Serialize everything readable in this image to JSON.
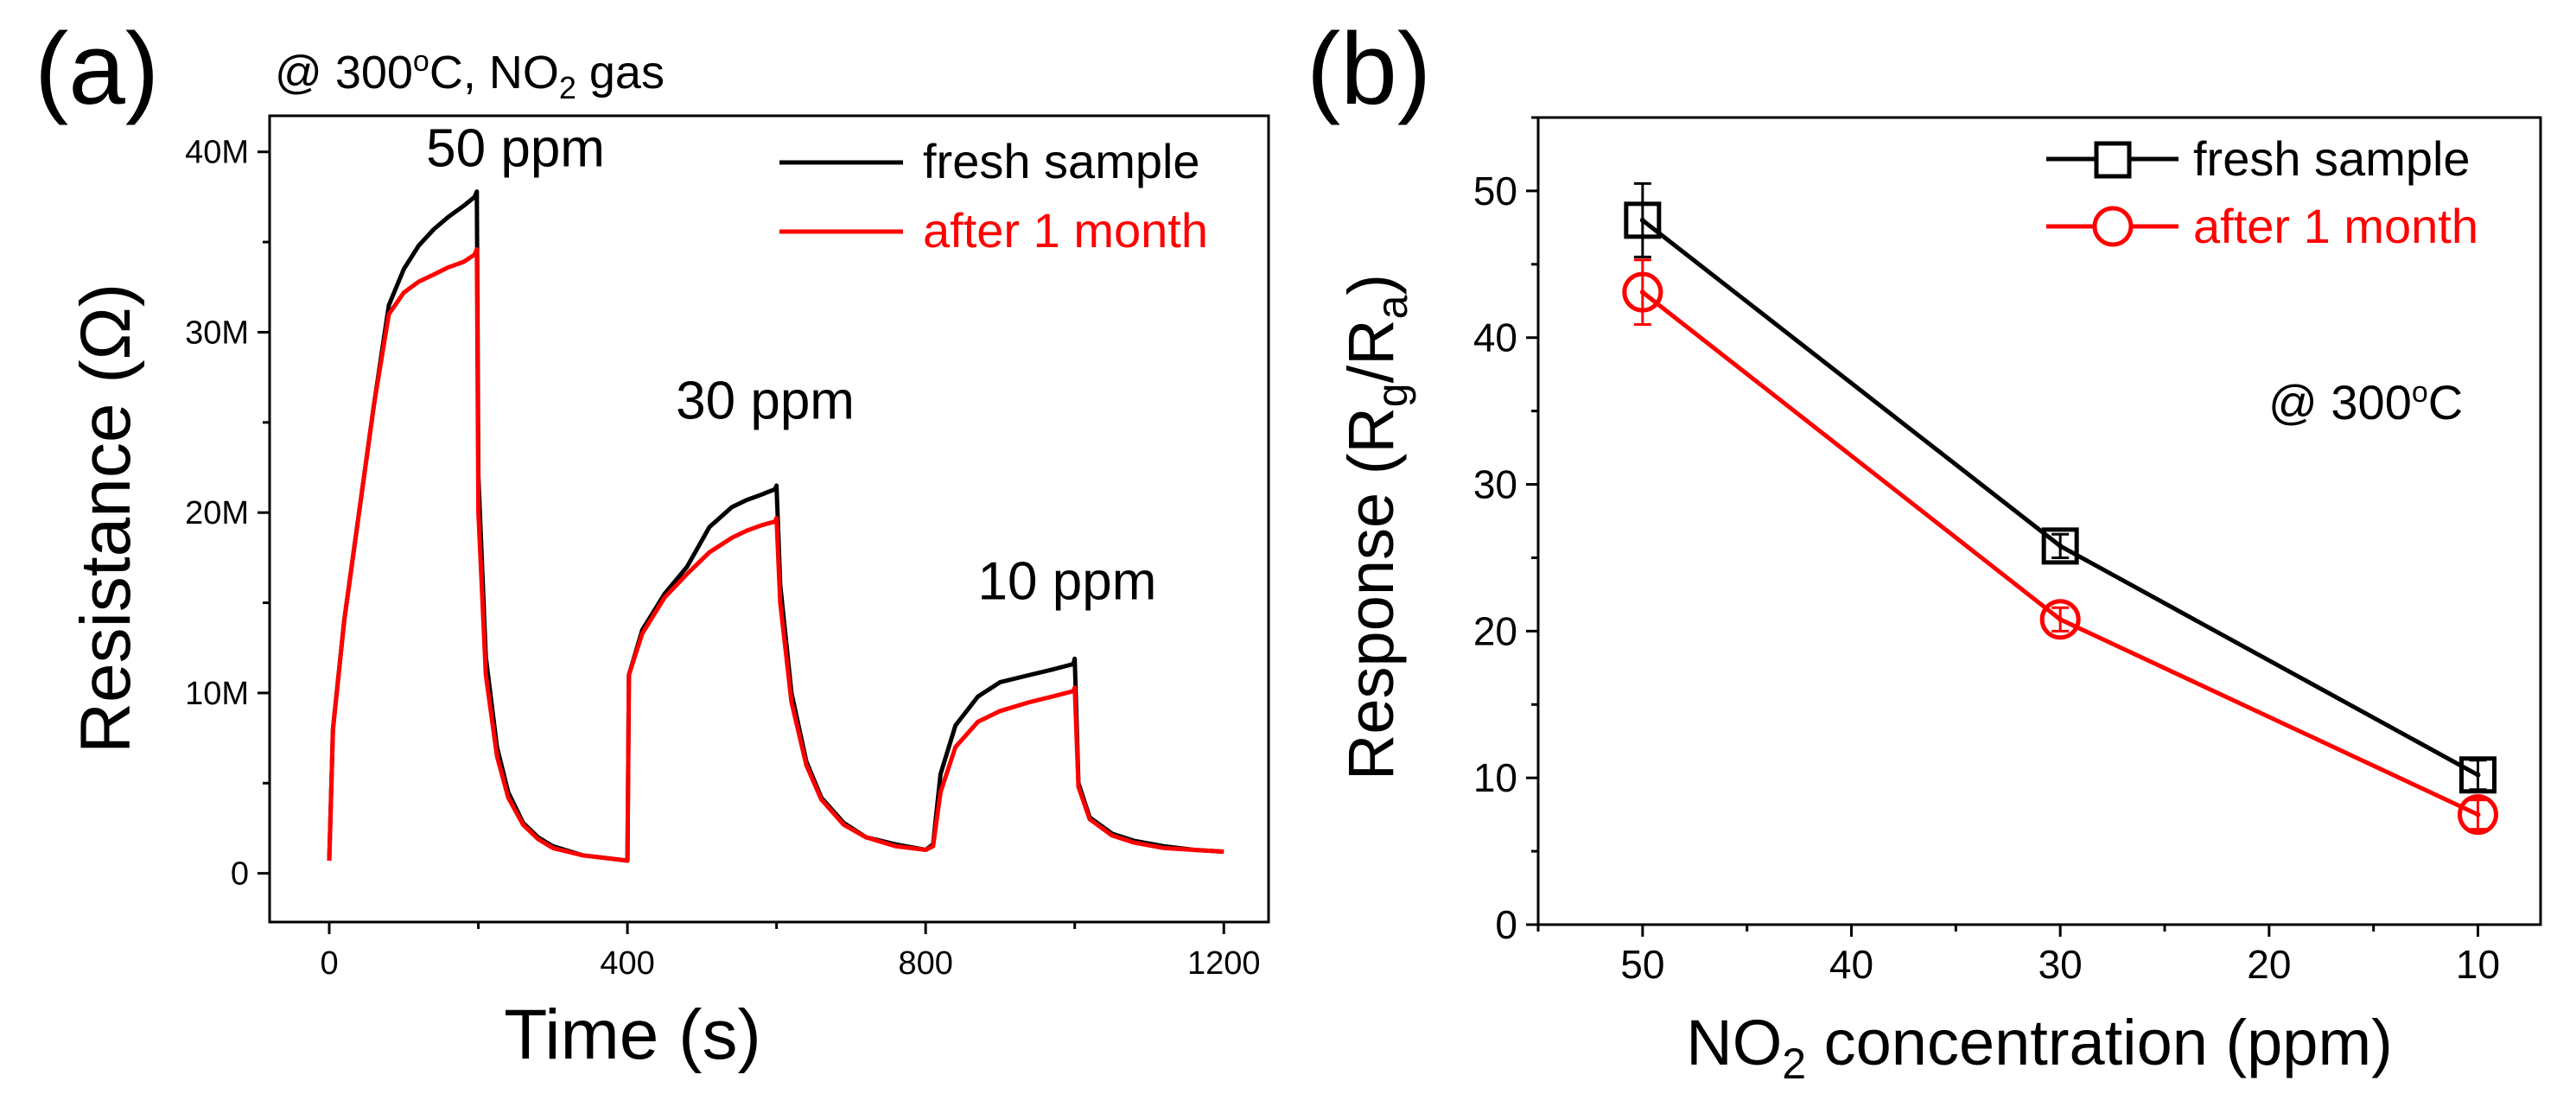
{
  "chart_data": [
    {
      "panel_label": "(a)",
      "type": "line",
      "condition_prefix": "@ 300",
      "condition_sup": "o",
      "condition_mid": "C, NO",
      "condition_sub": "2",
      "condition_suffix": " gas",
      "xlabel": "Time (s)",
      "ylabel": "Resistance (Ω)",
      "xlim": [
        -80,
        1260
      ],
      "ylim": [
        -2700000,
        42000000
      ],
      "xticks": [
        0,
        400,
        800,
        1200
      ],
      "xtick_labels": [
        "0",
        "400",
        "800",
        "1200"
      ],
      "yticks": [
        0,
        10000000,
        20000000,
        30000000,
        40000000
      ],
      "ytick_labels": [
        "0",
        "10M",
        "20M",
        "30M",
        "40M"
      ],
      "annotations": [
        {
          "text": "50 ppm",
          "x": 130,
          "y": 39200000
        },
        {
          "text": "30 ppm",
          "x": 465,
          "y": 25200000
        },
        {
          "text": "10 ppm",
          "x": 870,
          "y": 15200000
        }
      ],
      "legend": [
        {
          "name": "fresh sample",
          "color": "#000000"
        },
        {
          "name": "after 1 month",
          "color": "#ff0000"
        }
      ],
      "series": [
        {
          "name": "fresh sample",
          "color": "#000000",
          "points": [
            [
              0,
              700000
            ],
            [
              5,
              8000000
            ],
            [
              20,
              14000000
            ],
            [
              40,
              20000000
            ],
            [
              60,
              26000000
            ],
            [
              80,
              31500000
            ],
            [
              100,
              33500000
            ],
            [
              120,
              34800000
            ],
            [
              140,
              35700000
            ],
            [
              160,
              36400000
            ],
            [
              180,
              37000000
            ],
            [
              195,
              37500000
            ],
            [
              198,
              37800000
            ],
            [
              200,
              22000000
            ],
            [
              210,
              12000000
            ],
            [
              225,
              7000000
            ],
            [
              240,
              4500000
            ],
            [
              260,
              2800000
            ],
            [
              280,
              2000000
            ],
            [
              300,
              1500000
            ],
            [
              340,
              1000000
            ],
            [
              380,
              800000
            ],
            [
              400,
              700000
            ],
            [
              402,
              11000000
            ],
            [
              420,
              13500000
            ],
            [
              450,
              15500000
            ],
            [
              480,
              17000000
            ],
            [
              510,
              19200000
            ],
            [
              540,
              20300000
            ],
            [
              560,
              20700000
            ],
            [
              580,
              21000000
            ],
            [
              598,
              21300000
            ],
            [
              600,
              21500000
            ],
            [
              605,
              16000000
            ],
            [
              620,
              10000000
            ],
            [
              640,
              6200000
            ],
            [
              660,
              4200000
            ],
            [
              690,
              2800000
            ],
            [
              720,
              2000000
            ],
            [
              760,
              1600000
            ],
            [
              800,
              1300000
            ],
            [
              810,
              1600000
            ],
            [
              820,
              5500000
            ],
            [
              840,
              8200000
            ],
            [
              870,
              9800000
            ],
            [
              900,
              10600000
            ],
            [
              940,
              11000000
            ],
            [
              970,
              11300000
            ],
            [
              998,
              11600000
            ],
            [
              1000,
              11900000
            ],
            [
              1005,
              5000000
            ],
            [
              1020,
              3100000
            ],
            [
              1050,
              2200000
            ],
            [
              1080,
              1800000
            ],
            [
              1120,
              1500000
            ],
            [
              1160,
              1300000
            ],
            [
              1200,
              1200000
            ]
          ]
        },
        {
          "name": "after 1 month",
          "color": "#ff0000",
          "points": [
            [
              0,
              700000
            ],
            [
              5,
              8000000
            ],
            [
              20,
              14000000
            ],
            [
              40,
              20000000
            ],
            [
              60,
              26000000
            ],
            [
              80,
              31000000
            ],
            [
              100,
              32200000
            ],
            [
              120,
              32800000
            ],
            [
              140,
              33200000
            ],
            [
              160,
              33600000
            ],
            [
              180,
              33900000
            ],
            [
              195,
              34300000
            ],
            [
              198,
              34600000
            ],
            [
              200,
              20000000
            ],
            [
              210,
              11000000
            ],
            [
              225,
              6500000
            ],
            [
              240,
              4200000
            ],
            [
              260,
              2700000
            ],
            [
              280,
              1900000
            ],
            [
              300,
              1400000
            ],
            [
              340,
              1000000
            ],
            [
              380,
              800000
            ],
            [
              400,
              700000
            ],
            [
              402,
              11000000
            ],
            [
              420,
              13300000
            ],
            [
              450,
              15300000
            ],
            [
              480,
              16600000
            ],
            [
              510,
              17800000
            ],
            [
              540,
              18600000
            ],
            [
              560,
              19000000
            ],
            [
              580,
              19300000
            ],
            [
              598,
              19500000
            ],
            [
              600,
              19700000
            ],
            [
              605,
              15000000
            ],
            [
              620,
              9500000
            ],
            [
              640,
              6000000
            ],
            [
              660,
              4100000
            ],
            [
              690,
              2700000
            ],
            [
              720,
              2000000
            ],
            [
              760,
              1500000
            ],
            [
              800,
              1300000
            ],
            [
              810,
              1500000
            ],
            [
              820,
              4500000
            ],
            [
              840,
              7000000
            ],
            [
              870,
              8400000
            ],
            [
              900,
              9000000
            ],
            [
              940,
              9500000
            ],
            [
              970,
              9800000
            ],
            [
              998,
              10100000
            ],
            [
              1000,
              10300000
            ],
            [
              1005,
              4800000
            ],
            [
              1020,
              3000000
            ],
            [
              1050,
              2100000
            ],
            [
              1080,
              1700000
            ],
            [
              1120,
              1400000
            ],
            [
              1160,
              1300000
            ],
            [
              1200,
              1200000
            ]
          ]
        }
      ]
    },
    {
      "panel_label": "(b)",
      "type": "line",
      "condition_prefix": "@ 300",
      "condition_sup": "o",
      "condition_suffix": "C",
      "xlabel_main": "NO",
      "xlabel_sub": "2",
      "xlabel_rest": " concentration (ppm)",
      "ylabel_main": "Response (R",
      "ylabel_sub1": "g",
      "ylabel_mid": "/R",
      "ylabel_sub2": "a",
      "ylabel_end": ")",
      "x_reversed": true,
      "xlim": [
        55,
        7
      ],
      "ylim": [
        0,
        55
      ],
      "xticks": [
        50,
        40,
        30,
        20,
        10
      ],
      "xtick_labels": [
        "50",
        "40",
        "30",
        "20",
        "10"
      ],
      "yticks": [
        0,
        10,
        20,
        30,
        40,
        50
      ],
      "ytick_labels": [
        "0",
        "10",
        "20",
        "30",
        "40",
        "50"
      ],
      "x": [
        50,
        30,
        10
      ],
      "legend": [
        {
          "name": "fresh sample",
          "color": "#000000",
          "marker": "square"
        },
        {
          "name": "after 1 month",
          "color": "#ff0000",
          "marker": "circle"
        }
      ],
      "series": [
        {
          "name": "fresh sample",
          "color": "#000000",
          "marker": "square",
          "values": [
            48.0,
            25.8,
            10.2
          ],
          "errors": [
            2.5,
            0.8,
            1.0
          ]
        },
        {
          "name": "after 1 month",
          "color": "#ff0000",
          "marker": "circle",
          "values": [
            43.1,
            20.8,
            7.5
          ],
          "errors": [
            2.2,
            0.8,
            1.0
          ]
        }
      ]
    }
  ]
}
